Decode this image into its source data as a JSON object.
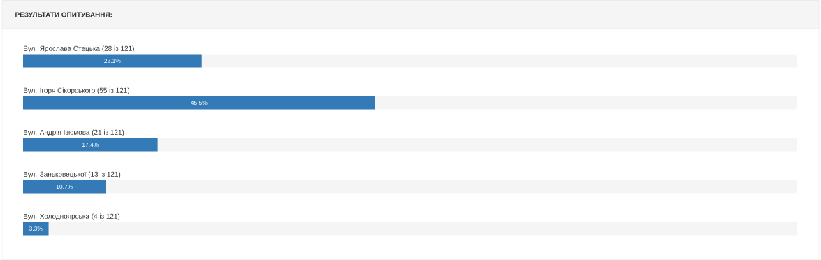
{
  "chart_data": {
    "type": "bar",
    "orientation": "horizontal",
    "title": "РЕЗУЛЬТАТИ ОПИТУВАННЯ:",
    "categories": [
      "Вул. Ярослава Стецька (28 із 121)",
      "Вул. Ігоря Сікорського (55 із 121)",
      "Вул. Андрія Ізюмова (21 із 121)",
      "Вул. Заньковецької (13 із 121)",
      "Вул. Холодноярська (4 із 121)"
    ],
    "values": [
      23.1,
      45.5,
      17.4,
      10.7,
      3.3
    ],
    "value_labels": [
      "23.1%",
      "45.5%",
      "17.4%",
      "10.7%",
      "3.3%"
    ],
    "color": "#337ab7",
    "xlim": [
      0,
      100
    ]
  }
}
